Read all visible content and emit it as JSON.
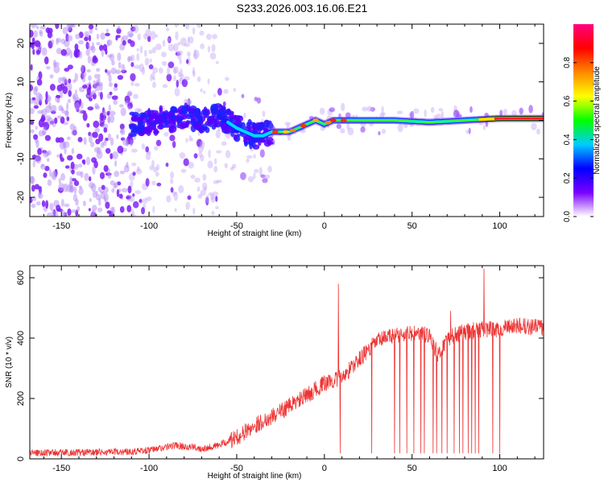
{
  "title": "S233.2026.003.16.06.E21",
  "chart_data": [
    {
      "type": "heatmap",
      "name": "spectrogram",
      "xlabel": "Height of straight line (km)",
      "ylabel": "Frequency (Hz)",
      "xlim": [
        -168,
        125
      ],
      "ylim": [
        -25,
        25
      ],
      "xticks": [
        -150,
        -100,
        -50,
        0,
        50,
        100
      ],
      "yticks": [
        -20,
        -10,
        0,
        10,
        20
      ],
      "ridge": {
        "x": [
          -110,
          -95,
          -80,
          -70,
          -60,
          -50,
          -40,
          -35,
          -30,
          -20,
          -15,
          -10,
          -5,
          0,
          5,
          10,
          20,
          40,
          60,
          80,
          100,
          125
        ],
        "y": [
          -1,
          0,
          1,
          0,
          1,
          -2,
          -4,
          -4,
          -3,
          -3,
          -2,
          -1,
          0,
          -1,
          0,
          0,
          0,
          0,
          -0.5,
          0,
          0.5,
          0.5
        ]
      },
      "colorbar": {
        "label": "Normalized spectral amplitude",
        "ticks": [
          0.0,
          0.2,
          0.4,
          0.6,
          0.8
        ],
        "ticklabels": [
          "0.0",
          "0.2",
          "0.4",
          "0.6",
          "0.8"
        ],
        "range": [
          0,
          1
        ],
        "colors": [
          "#ffffff",
          "#7a00ff",
          "#0000ff",
          "#00ccff",
          "#00ff00",
          "#ffff00",
          "#ff8800",
          "#ff0000",
          "#ff0080"
        ]
      }
    },
    {
      "type": "line",
      "name": "snr",
      "xlabel": "Height of straight line (km)",
      "ylabel": "SNR (10 * v/v)",
      "xlim": [
        -168,
        125
      ],
      "ylim": [
        0,
        640
      ],
      "xticks": [
        -150,
        -100,
        -50,
        0,
        50,
        100
      ],
      "yticks": [
        0,
        200,
        400,
        600
      ],
      "color": "#ee3333",
      "trend": {
        "x": [
          -168,
          -120,
          -100,
          -85,
          -70,
          -60,
          -50,
          -40,
          -30,
          -20,
          -10,
          0,
          5,
          10,
          20,
          30,
          40,
          50,
          60,
          65,
          70,
          80,
          90,
          100,
          110,
          125
        ],
        "y": [
          20,
          22,
          28,
          45,
          35,
          45,
          70,
          110,
          140,
          175,
          210,
          250,
          260,
          270,
          330,
          390,
          410,
          415,
          410,
          340,
          400,
          420,
          430,
          430,
          440,
          435
        ]
      },
      "spikes": [
        {
          "x": 8,
          "y": 580
        },
        {
          "x": 91,
          "y": 630
        },
        {
          "x": 72,
          "y": 490
        }
      ],
      "dropouts": [
        8,
        9,
        27,
        40,
        43,
        47,
        51,
        55,
        57,
        62,
        64,
        67,
        70,
        72,
        74,
        77,
        79,
        82,
        84,
        86,
        88,
        96,
        100
      ]
    }
  ]
}
